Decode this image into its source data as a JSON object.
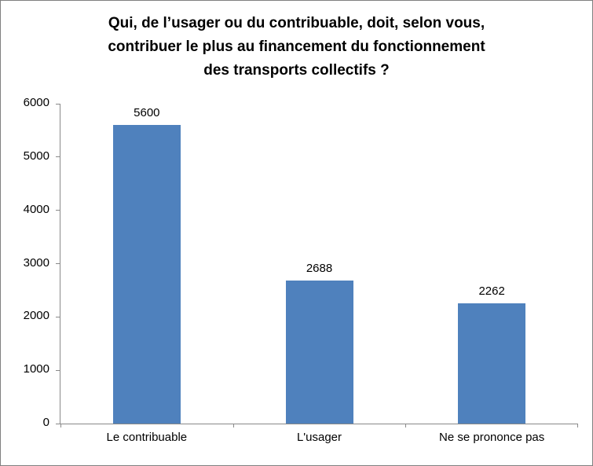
{
  "chart_data": {
    "type": "bar",
    "title": "Qui, de l’usager ou du contribuable, doit, selon vous, contribuer le plus au financement du fonctionnement des transports collectifs ?",
    "title_lines": [
      "Qui, de l’usager ou du contribuable, doit, selon vous,",
      "contribuer le plus au financement du fonctionnement",
      "des transports collectifs ?"
    ],
    "categories": [
      "Le contribuable",
      "L'usager",
      "Ne se prononce pas"
    ],
    "values": [
      5600,
      2688,
      2262
    ],
    "value_labels": [
      "5600",
      "2688",
      "2262"
    ],
    "ylim": [
      0,
      6000
    ],
    "yticks": [
      0,
      1000,
      2000,
      3000,
      4000,
      5000,
      6000
    ],
    "ytick_labels": [
      "0",
      "1000",
      "2000",
      "3000",
      "4000",
      "5000",
      "6000"
    ],
    "xlabel": "",
    "ylabel": "",
    "legend": "none",
    "grid": "off",
    "bar_color": "#4F81BD",
    "axis_color": "#898989",
    "text_color": "#000000"
  }
}
